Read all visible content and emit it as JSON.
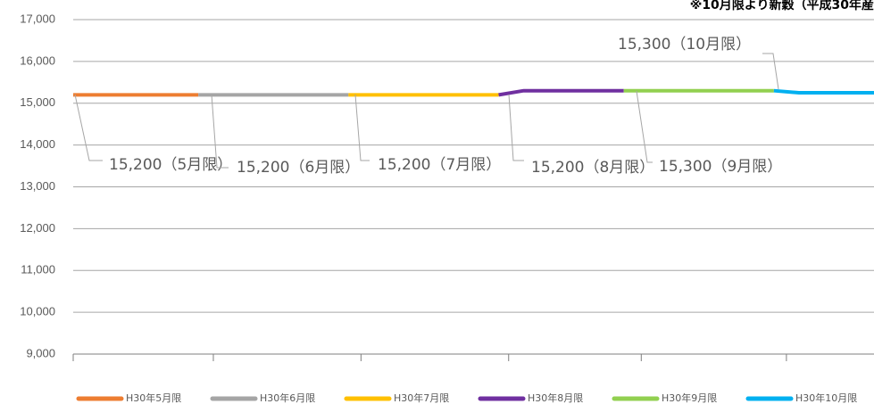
{
  "chart_data": {
    "type": "line",
    "note": "※10月限より新穀（平成30年産",
    "categories": [
      null,
      null,
      null,
      null,
      null,
      null,
      null,
      null,
      null,
      null,
      null,
      null,
      null,
      null,
      null,
      null,
      null,
      null,
      null,
      null,
      null,
      null,
      null,
      null,
      null,
      null,
      null,
      null,
      null,
      null,
      null,
      null,
      null
    ],
    "ylim": [
      9000,
      17000
    ],
    "yticks": [
      {
        "value": 9000,
        "label": "9,000"
      },
      {
        "value": 10000,
        "label": "10,000"
      },
      {
        "value": 11000,
        "label": "11,000"
      },
      {
        "value": 12000,
        "label": "12,000"
      },
      {
        "value": 13000,
        "label": "13,000"
      },
      {
        "value": 14000,
        "label": "14,000"
      },
      {
        "value": 15000,
        "label": "15,000"
      },
      {
        "value": 16000,
        "label": "16,000"
      },
      {
        "value": 17000,
        "label": "17,000"
      }
    ],
    "grid": true,
    "legend": "bottom",
    "series": [
      {
        "name": "H30年5月限",
        "color": "#ED7D31",
        "values": [
          15200,
          15200,
          15200,
          15200,
          15200,
          15200,
          null,
          null,
          null,
          null,
          null,
          null,
          null,
          null,
          null,
          null,
          null,
          null,
          null,
          null,
          null,
          null,
          null,
          null,
          null,
          null,
          null,
          null,
          null,
          null,
          null,
          null,
          null
        ]
      },
      {
        "name": "H30年6月限",
        "color": "#A5A5A5",
        "values": [
          null,
          null,
          null,
          null,
          null,
          15200,
          15200,
          15200,
          15200,
          15200,
          15200,
          15200,
          null,
          null,
          null,
          null,
          null,
          null,
          null,
          null,
          null,
          null,
          null,
          null,
          null,
          null,
          null,
          null,
          null,
          null,
          null,
          null,
          null
        ]
      },
      {
        "name": "H30年7月限",
        "color": "#FFC000",
        "values": [
          null,
          null,
          null,
          null,
          null,
          null,
          null,
          null,
          null,
          null,
          null,
          15200,
          15200,
          15200,
          15200,
          15200,
          15200,
          15200,
          null,
          null,
          null,
          null,
          null,
          null,
          null,
          null,
          null,
          null,
          null,
          null,
          null,
          null,
          null
        ]
      },
      {
        "name": "H30年8月限",
        "color": "#7030A0",
        "values": [
          null,
          null,
          null,
          null,
          null,
          null,
          null,
          null,
          null,
          null,
          null,
          null,
          null,
          null,
          null,
          null,
          null,
          15200,
          15300,
          15300,
          15300,
          15300,
          15300,
          null,
          null,
          null,
          null,
          null,
          null,
          null,
          null,
          null,
          null
        ]
      },
      {
        "name": "H30年9月限",
        "color": "#92D050",
        "values": [
          null,
          null,
          null,
          null,
          null,
          null,
          null,
          null,
          null,
          null,
          null,
          null,
          null,
          null,
          null,
          null,
          null,
          null,
          null,
          null,
          null,
          null,
          15300,
          15300,
          15300,
          15300,
          15300,
          15300,
          15300,
          null,
          null,
          null,
          null
        ]
      },
      {
        "name": "H30年10月限",
        "color": "#00B0F0",
        "values": [
          null,
          null,
          null,
          null,
          null,
          null,
          null,
          null,
          null,
          null,
          null,
          null,
          null,
          null,
          null,
          null,
          null,
          null,
          null,
          null,
          null,
          null,
          null,
          null,
          null,
          null,
          null,
          null,
          15300,
          15250,
          15250,
          15250,
          15250
        ]
      }
    ],
    "annotations": [
      "15,200（5月限）",
      "15,200（6月限）",
      "15,200（7月限）",
      "15,200（8月限）",
      "15,300（9月限）",
      "15,300（10月限）"
    ]
  }
}
